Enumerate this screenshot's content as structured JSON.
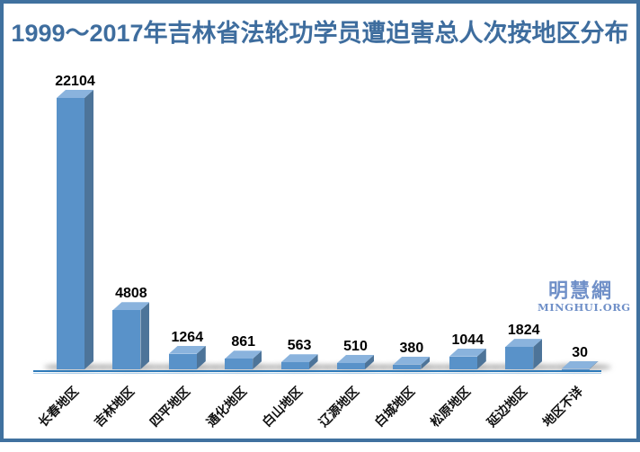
{
  "title": "1999～2017年吉林省法轮功学员遭迫害总人次按地区分布",
  "watermark": {
    "cn": "明慧網",
    "en": "MINGHUI.ORG"
  },
  "chart_data": {
    "type": "bar",
    "style": "3d-column",
    "title": "1999～2017年吉林省法轮功学员遭迫害总人次按地区分布",
    "categories": [
      "长春地区",
      "吉林地区",
      "四平地区",
      "通化地区",
      "白山地区",
      "辽源地区",
      "白城地区",
      "松原地区",
      "延边地区",
      "地区不详"
    ],
    "values": [
      22104,
      4808,
      1264,
      861,
      563,
      510,
      380,
      1044,
      1824,
      30
    ],
    "value_labels_shown": true,
    "xlabel": "",
    "ylabel": "",
    "ylim": [
      0,
      22104
    ],
    "grid": false,
    "legend": false,
    "colors": {
      "bar_front": "#5992c9",
      "bar_top": "#8ab3dd",
      "bar_side": "#4d7499",
      "axis_line": "#2e7ab9",
      "axis_line_light": "#aed0ec",
      "title": "#3e6d9e",
      "frame_border": "#40719f",
      "value_label": "#000000",
      "category_label": "#111111",
      "watermark": "#7090c8",
      "background": "#ffffff"
    }
  }
}
